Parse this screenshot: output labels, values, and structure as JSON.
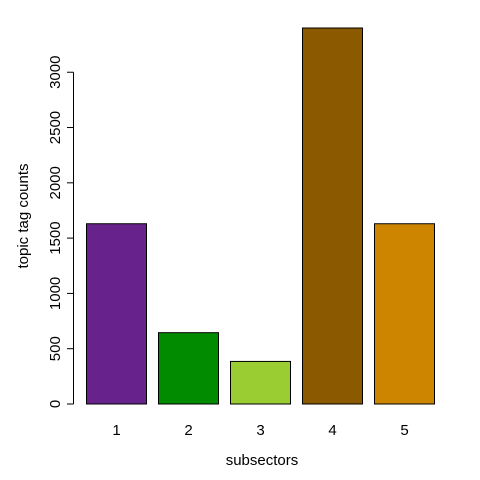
{
  "chart_data": {
    "type": "bar",
    "title": "",
    "xlabel": "subsectors",
    "ylabel": "topic tag counts",
    "categories": [
      "1",
      "2",
      "3",
      "4",
      "5"
    ],
    "values": [
      1630,
      645,
      385,
      3400,
      1630
    ],
    "colors": [
      "#68228B",
      "#008B00",
      "#9ACD32",
      "#8B5A00",
      "#CD8500"
    ],
    "ylim": [
      0,
      3400
    ],
    "yticks": [
      0,
      500,
      1000,
      1500,
      2000,
      2500,
      3000
    ],
    "grid": false,
    "legend": "none"
  }
}
